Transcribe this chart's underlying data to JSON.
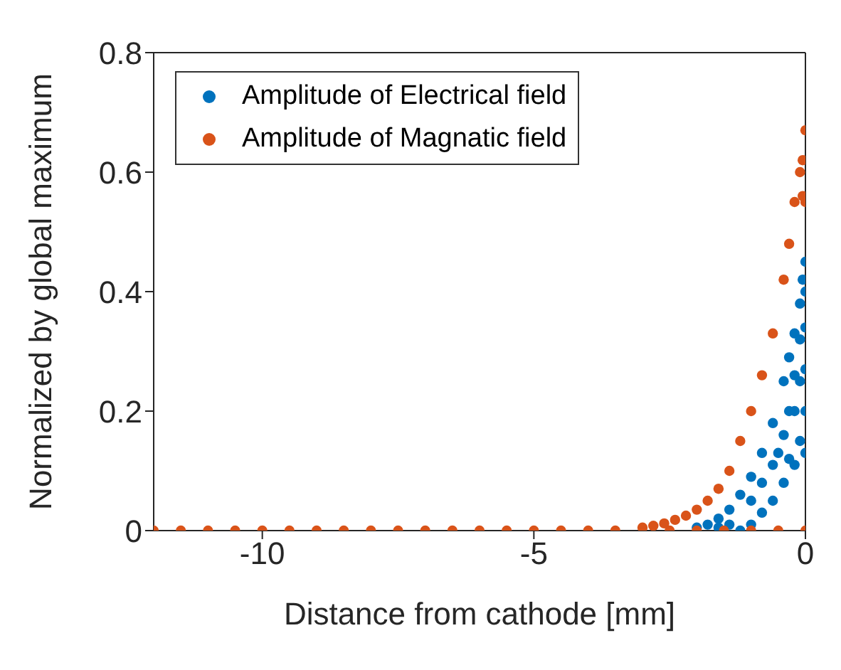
{
  "chart_data": {
    "type": "scatter",
    "xlabel": "Distance from cathode [mm]",
    "ylabel": "Normalized by global maximum",
    "xlim": [
      -12,
      0
    ],
    "xticks": [
      -10,
      -5,
      0
    ],
    "ylim": [
      0,
      0.8
    ],
    "yticks": [
      0,
      0.2,
      0.4,
      0.6,
      0.8
    ],
    "legend": "top left",
    "marker": "circle",
    "series": [
      {
        "name": "Amplitude of Electrical field",
        "color": "#0072bd",
        "x": [
          -2.0,
          -1.8,
          -1.6,
          -1.4,
          -1.2,
          -1.0,
          -0.8,
          -0.6,
          -0.4,
          -0.3,
          -0.2,
          -0.1,
          -0.05,
          0,
          -1.2,
          -1.0,
          -0.8,
          -0.6,
          -0.4,
          -0.2,
          0,
          -0.8,
          -0.6,
          -0.4,
          -0.2,
          -0.2,
          0,
          0,
          0,
          0,
          -0.1,
          -0.1,
          -0.1,
          -0.5,
          -0.3,
          -0.3,
          -1.0,
          -1.4,
          -1.6
        ],
        "values": [
          0.005,
          0.01,
          0.02,
          0.035,
          0.06,
          0.09,
          0.13,
          0.18,
          0.25,
          0.29,
          0.33,
          0.38,
          0.42,
          0.45,
          0,
          0.01,
          0.03,
          0.05,
          0.08,
          0.11,
          0.13,
          0.08,
          0.11,
          0.16,
          0.2,
          0.26,
          0.2,
          0.27,
          0.34,
          0.4,
          0.15,
          0.25,
          0.32,
          0.13,
          0.12,
          0.2,
          0.05,
          0.01,
          0.005
        ]
      },
      {
        "name": "Amplitude of Magnatic field",
        "color": "#d95319",
        "x": [
          -12,
          -11.5,
          -11,
          -10.5,
          -10,
          -9.5,
          -9,
          -8.5,
          -8,
          -7.5,
          -7,
          -6.5,
          -6,
          -5.5,
          -5,
          -4.5,
          -4,
          -3.5,
          -2.5,
          -2,
          -1.5,
          -1,
          -0.5,
          0,
          -3.0,
          -2.8,
          -2.6,
          -2.4,
          -2.2,
          -2.0,
          -1.8,
          -1.6,
          -1.4,
          -1.2,
          -1.0,
          -0.8,
          -0.6,
          -0.4,
          -0.3,
          -0.2,
          -0.1,
          0,
          -0.05,
          -0.05,
          0
        ],
        "values": [
          0,
          0,
          0,
          0,
          0,
          0,
          0,
          0,
          0,
          0,
          0,
          0,
          0,
          0,
          0,
          0,
          0,
          0,
          0,
          0,
          0,
          0,
          0,
          0,
          0.005,
          0.008,
          0.012,
          0.018,
          0.025,
          0.035,
          0.05,
          0.07,
          0.1,
          0.15,
          0.2,
          0.26,
          0.33,
          0.42,
          0.48,
          0.55,
          0.6,
          0.67,
          0.56,
          0.62,
          0.55
        ]
      }
    ]
  }
}
